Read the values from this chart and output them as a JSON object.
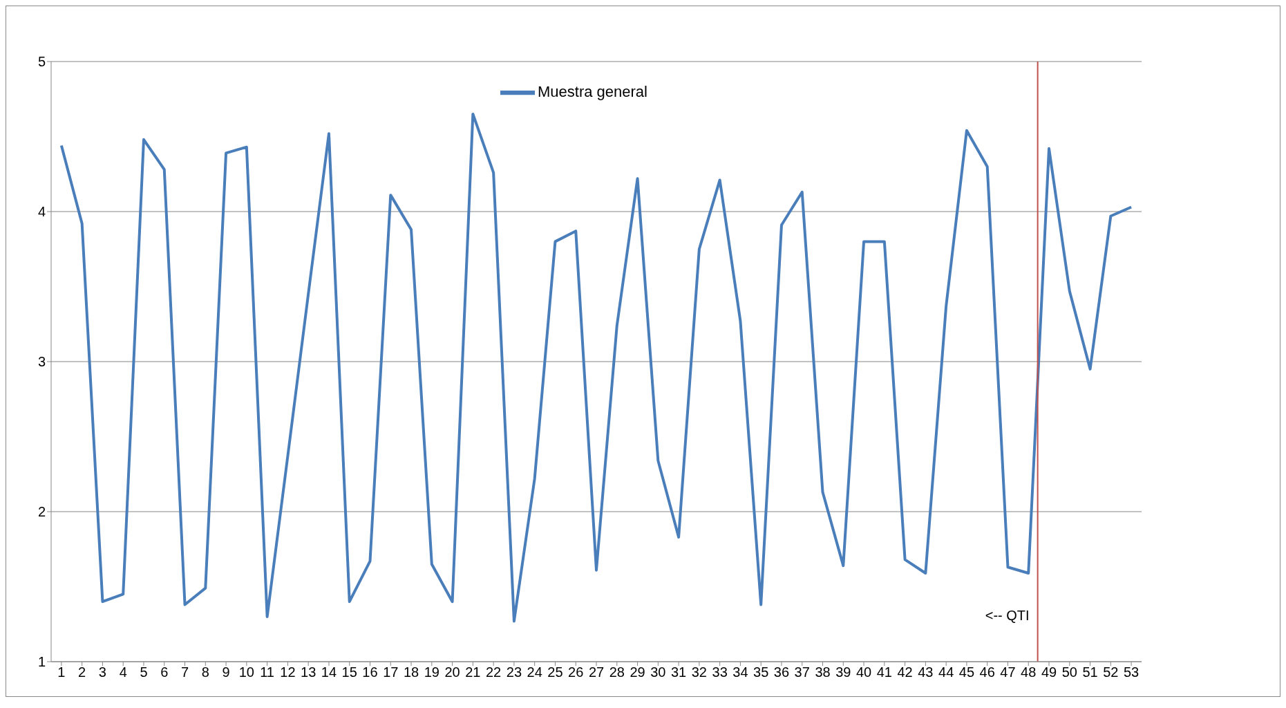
{
  "chart_data": {
    "type": "line",
    "x": [
      1,
      2,
      3,
      4,
      5,
      6,
      7,
      8,
      9,
      10,
      11,
      12,
      13,
      14,
      15,
      16,
      17,
      18,
      19,
      20,
      21,
      22,
      23,
      24,
      25,
      26,
      27,
      28,
      29,
      30,
      31,
      32,
      33,
      34,
      35,
      36,
      37,
      38,
      39,
      40,
      41,
      42,
      43,
      44,
      45,
      46,
      47,
      48,
      49,
      50,
      51,
      52,
      53
    ],
    "xlim": [
      0.5,
      53.5
    ],
    "xticks": [
      1,
      2,
      3,
      4,
      5,
      6,
      7,
      8,
      9,
      10,
      11,
      12,
      13,
      14,
      15,
      16,
      17,
      18,
      19,
      20,
      21,
      22,
      23,
      24,
      25,
      26,
      27,
      28,
      29,
      30,
      31,
      32,
      33,
      34,
      35,
      36,
      37,
      38,
      39,
      40,
      41,
      42,
      43,
      44,
      45,
      46,
      47,
      48,
      49,
      50,
      51,
      52,
      53
    ],
    "ylim": [
      1,
      5
    ],
    "yticks": [
      1,
      2,
      3,
      4,
      5
    ],
    "grid": "y",
    "legend": "top",
    "marker": "none",
    "line_style": "solid",
    "series": [
      {
        "name": "Muestra general",
        "color": "#4a7ebb",
        "values": [
          4.44,
          3.92,
          1.4,
          1.45,
          4.48,
          4.28,
          1.38,
          1.49,
          4.39,
          4.43,
          1.3,
          2.37,
          3.45,
          4.52,
          1.4,
          1.67,
          4.11,
          3.88,
          1.65,
          1.4,
          4.65,
          4.26,
          1.27,
          2.22,
          3.8,
          3.87,
          1.61,
          3.24,
          4.22,
          2.34,
          1.83,
          3.75,
          4.21,
          3.27,
          1.38,
          3.91,
          4.13,
          2.13,
          1.64,
          3.8,
          3.8,
          1.68,
          1.59,
          3.37,
          4.54,
          4.3,
          1.63,
          1.59,
          4.42,
          3.47,
          2.95,
          3.97,
          4.03
        ]
      }
    ],
    "ref_lines": [
      {
        "axis": "x",
        "value": 48.45,
        "label": "<-- QTI",
        "color": "#c0504d",
        "line_style": "solid"
      }
    ]
  }
}
